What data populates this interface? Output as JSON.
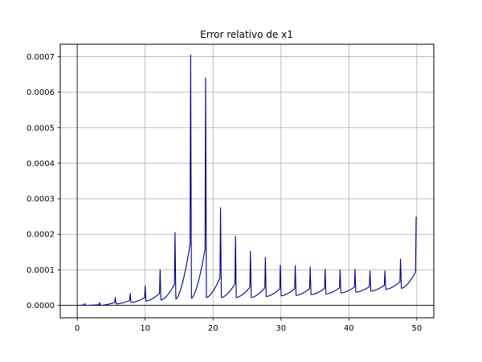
{
  "chart_data": {
    "type": "line",
    "title": "Error relativo de x1",
    "xlabel": "",
    "ylabel": "",
    "xlim": [
      -2.5,
      52.5
    ],
    "ylim": [
      -3.5e-05,
      0.000735
    ],
    "x_ticks": [
      0,
      10,
      20,
      30,
      40,
      50
    ],
    "x_tick_labels": [
      "0",
      "10",
      "20",
      "30",
      "40",
      "50"
    ],
    "y_ticks": [
      0,
      0.0001,
      0.0002,
      0.0003,
      0.0004,
      0.0005,
      0.0006,
      0.0007
    ],
    "y_tick_labels": [
      "0.0000",
      "0.0001",
      "0.0002",
      "0.0003",
      "0.0004",
      "0.0005",
      "0.0006",
      "0.0007"
    ],
    "grid": true,
    "reference_lines": {
      "x": 0,
      "y": 0
    },
    "series": [
      {
        "color": "#00008b",
        "peaks": [
          {
            "x": 1.1,
            "y": 5e-06,
            "base": 0.0
          },
          {
            "x": 3.3,
            "y": 8e-06,
            "base": 0.0
          },
          {
            "x": 5.6,
            "y": 2.2e-05,
            "base": 4e-06
          },
          {
            "x": 7.8,
            "y": 3.3e-05,
            "base": 8e-06
          },
          {
            "x": 10.0,
            "y": 5.5e-05,
            "base": 1.2e-05
          },
          {
            "x": 12.2,
            "y": 0.0001,
            "base": 1.5e-05
          },
          {
            "x": 14.4,
            "y": 0.000205,
            "base": 1.8e-05
          },
          {
            "x": 16.7,
            "y": 0.000705,
            "base": 2e-05
          },
          {
            "x": 18.9,
            "y": 0.00064,
            "base": 2.2e-05
          },
          {
            "x": 21.1,
            "y": 0.000275,
            "base": 2.2e-05
          },
          {
            "x": 23.3,
            "y": 0.000195,
            "base": 2.2e-05
          },
          {
            "x": 25.5,
            "y": 0.000152,
            "base": 2.2e-05
          },
          {
            "x": 27.7,
            "y": 0.000135,
            "base": 2.5e-05
          },
          {
            "x": 29.9,
            "y": 0.000113,
            "base": 2.7e-05
          },
          {
            "x": 32.1,
            "y": 0.000112,
            "base": 2.8e-05
          },
          {
            "x": 34.3,
            "y": 0.000108,
            "base": 3e-05
          },
          {
            "x": 36.5,
            "y": 0.000102,
            "base": 3.2e-05
          },
          {
            "x": 38.7,
            "y": 0.0001,
            "base": 3.5e-05
          },
          {
            "x": 40.9,
            "y": 0.000102,
            "base": 3.7e-05
          },
          {
            "x": 43.1,
            "y": 9.7e-05,
            "base": 4e-05
          },
          {
            "x": 45.3,
            "y": 9.7e-05,
            "base": 4.5e-05
          },
          {
            "x": 47.6,
            "y": 0.00013,
            "base": 4.8e-05
          },
          {
            "x": 49.9,
            "y": 0.000248,
            "base": 5e-05
          }
        ],
        "start": {
          "x": 0.0,
          "y": 0.0
        },
        "end": {
          "x": 50.0,
          "y": 0.000248
        }
      }
    ]
  }
}
